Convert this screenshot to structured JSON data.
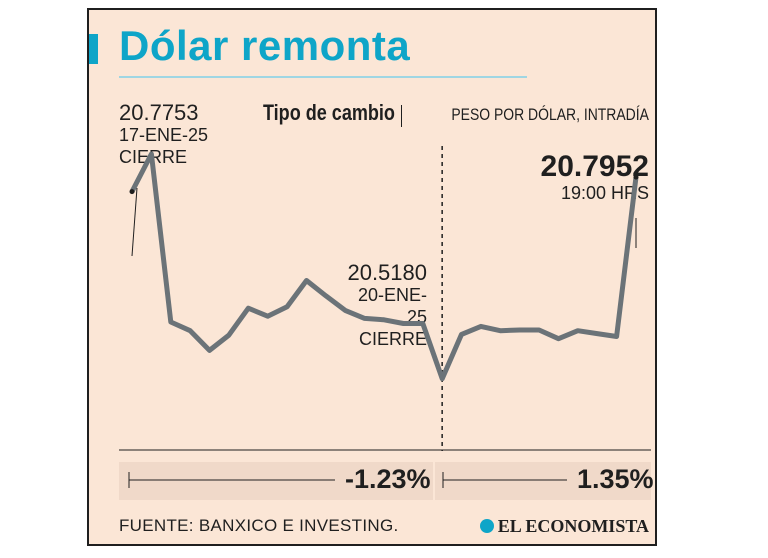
{
  "title": "Dólar remonta",
  "header": {
    "main": "Tipo de cambio",
    "sub": "PESO POR DÓLAR, INTRADÍA"
  },
  "annotations": {
    "start": {
      "value": "20.7753",
      "date": "17-ENE-25",
      "label": "CIERRE"
    },
    "mid": {
      "value": "20.5180",
      "date": "20-ENE-25",
      "label": "CIERRE"
    },
    "end": {
      "value": "20.7952",
      "time": "19:00 HRS"
    }
  },
  "changes": {
    "left": "-1.23%",
    "right": "1.35%"
  },
  "footer": {
    "source": "FUENTE: BANXICO E INVESTING.",
    "brand": "EL ECONOMISTA"
  },
  "colors": {
    "accent": "#0ea5c8",
    "line": "#6b7378",
    "background": "#fbe6d6"
  },
  "chart_data": {
    "type": "line",
    "title": "Tipo de cambio",
    "ylabel": "PESO POR DÓLAR, INTRADÍA",
    "ylim": [
      20.42,
      20.86
    ],
    "divider_index": 16,
    "values": [
      20.7753,
      20.827,
      20.596,
      20.584,
      20.557,
      20.578,
      20.615,
      20.604,
      20.617,
      20.653,
      20.632,
      20.612,
      20.601,
      20.599,
      20.594,
      20.594,
      20.518,
      20.579,
      20.59,
      20.584,
      20.585,
      20.585,
      20.573,
      20.584,
      20.58,
      20.576,
      20.7952
    ]
  }
}
